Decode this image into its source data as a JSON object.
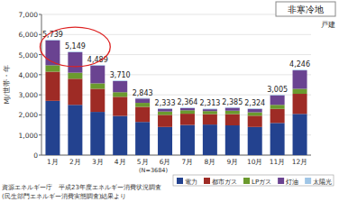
{
  "chart_data": {
    "type": "bar",
    "stacked": true,
    "grid": true,
    "data_labels": true,
    "y_label": "MJ/世帯・年",
    "annotations": [
      "非寒冷地",
      "戸建",
      "(N=3684)"
    ],
    "source": [
      "資源エネルギー庁　平成23年度エネルギー消費状況調査",
      "(民生部門エネルギー消費実態調査)結果より"
    ],
    "categories": [
      "1月",
      "2月",
      "3月",
      "4月",
      "5月",
      "6月",
      "7月",
      "8月",
      "9月",
      "10月",
      "11月",
      "12月"
    ],
    "series": [
      {
        "name": "電力",
        "color": "#23428f",
        "values": [
          2700,
          2500,
          2150,
          1950,
          1650,
          1400,
          1500,
          1520,
          1480,
          1400,
          1600,
          2050
        ]
      },
      {
        "name": "都市ガス",
        "color": "#9e2b25",
        "values": [
          1450,
          1300,
          1150,
          950,
          750,
          600,
          560,
          520,
          560,
          560,
          700,
          1000
        ]
      },
      {
        "name": "LPガス",
        "color": "#6b9a2e",
        "values": [
          320,
          300,
          270,
          230,
          200,
          170,
          170,
          150,
          170,
          170,
          200,
          250
        ]
      },
      {
        "name": "灯油",
        "color": "#6a4391",
        "values": [
          1239,
          1019,
          889,
          550,
          213,
          133,
          104,
          93,
          145,
          164,
          475,
          916
        ]
      },
      {
        "name": "太陽光",
        "color": "#9fc5e6",
        "values": [
          30,
          30,
          30,
          30,
          30,
          30,
          30,
          30,
          30,
          30,
          30,
          30
        ]
      }
    ],
    "totals": [
      5739,
      5149,
      4489,
      3710,
      2843,
      2333,
      2364,
      2313,
      2385,
      2324,
      3005,
      4246
    ],
    "total_labels": [
      "5,739",
      "5,149",
      "4,489",
      "3,710",
      "2,843",
      "2,333",
      "2,364",
      "2,313",
      "2,385",
      "2,324",
      "3,005",
      "4,246"
    ],
    "ylim": [
      0,
      7000
    ],
    "yticks": [
      0,
      {
        "value": 1000,
        "label": "1,000"
      },
      {
        "value": 2000,
        "label": "2,000"
      },
      {
        "value": 3000,
        "label": "3,000"
      },
      {
        "value": 4000,
        "label": "4,000"
      },
      {
        "value": 5000,
        "label": "5,000"
      },
      {
        "value": 6000,
        "label": "6,000"
      },
      {
        "value": 7000,
        "label": "7,000"
      }
    ]
  }
}
